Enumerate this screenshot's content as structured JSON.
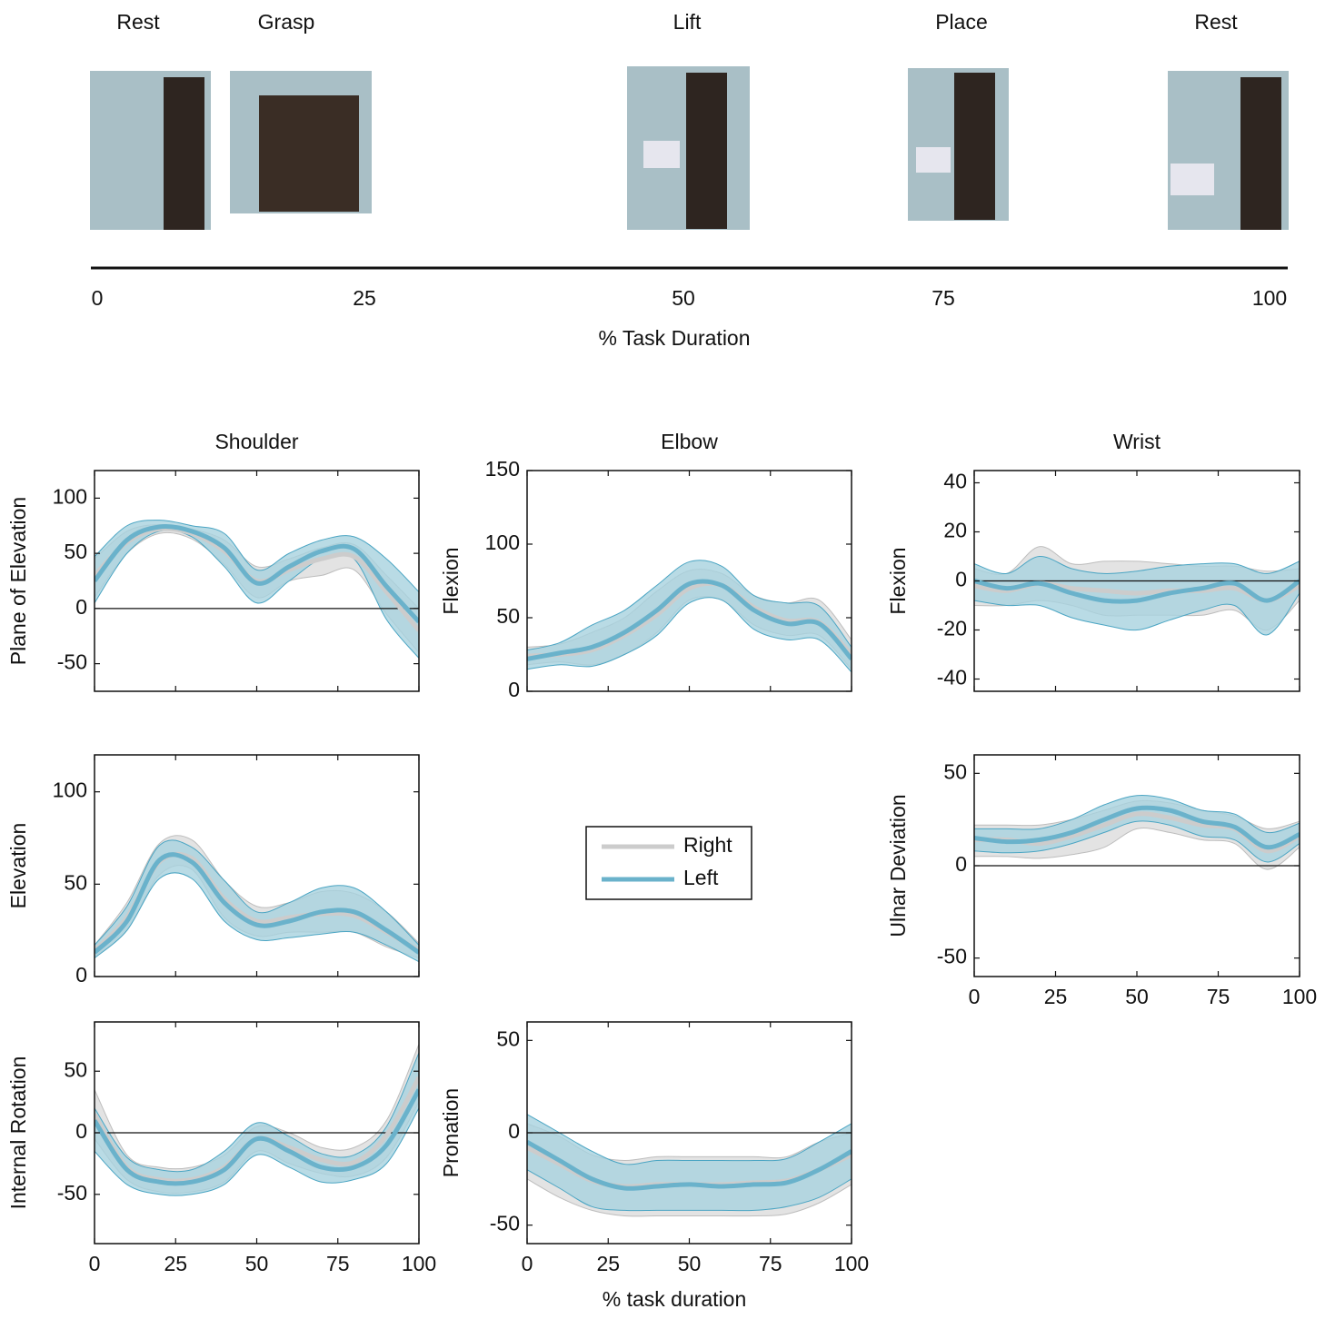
{
  "timeline": {
    "phases": [
      "Rest",
      "Grasp",
      "Lift",
      "Place",
      "Rest"
    ],
    "ticks": [
      0,
      25,
      50,
      75,
      100
    ],
    "xlabel": "% Task Duration"
  },
  "xlabel": "% task duration",
  "chart_data": [
    {
      "type": "line",
      "title": "Shoulder",
      "ylabel": "Plane of Elevation",
      "x": [
        0,
        10,
        20,
        30,
        40,
        50,
        60,
        70,
        80,
        90,
        100
      ],
      "xlim": [
        0,
        100
      ],
      "xticks": [
        0,
        25,
        50,
        75,
        100
      ],
      "show_xtick_labels": false,
      "ylim": [
        -75,
        125
      ],
      "yticks": [
        -50,
        0,
        50,
        100
      ],
      "zero_line": true,
      "series": [
        {
          "name": "Right",
          "color": "#cccccc",
          "band_color": "#e3e3e3",
          "values": [
            30,
            60,
            72,
            68,
            52,
            25,
            35,
            45,
            47,
            15,
            -20
          ],
          "lower": [
            10,
            50,
            68,
            63,
            40,
            10,
            25,
            30,
            35,
            -5,
            -40
          ],
          "upper": [
            45,
            70,
            76,
            72,
            62,
            38,
            45,
            55,
            58,
            30,
            0
          ]
        },
        {
          "name": "Left",
          "color": "#6ab2cb",
          "band_color": "#a8d2df",
          "values": [
            25,
            62,
            74,
            70,
            55,
            23,
            38,
            52,
            54,
            20,
            -12
          ],
          "lower": [
            5,
            50,
            70,
            65,
            38,
            5,
            25,
            45,
            45,
            -10,
            -45
          ],
          "upper": [
            47,
            75,
            80,
            75,
            68,
            35,
            50,
            62,
            65,
            45,
            15
          ]
        }
      ]
    },
    {
      "type": "line",
      "title": "Elbow",
      "ylabel": "Flexion",
      "x": [
        0,
        10,
        20,
        30,
        40,
        50,
        60,
        70,
        80,
        90,
        100
      ],
      "xlim": [
        0,
        100
      ],
      "xticks": [
        0,
        25,
        50,
        75,
        100
      ],
      "show_xtick_labels": false,
      "ylim": [
        0,
        150
      ],
      "yticks": [
        0,
        50,
        100,
        150
      ],
      "zero_line": false,
      "series": [
        {
          "name": "Right",
          "color": "#cccccc",
          "band_color": "#e3e3e3",
          "values": [
            24,
            25,
            28,
            38,
            52,
            70,
            72,
            57,
            48,
            47,
            25
          ],
          "lower": [
            18,
            20,
            18,
            25,
            40,
            62,
            62,
            45,
            38,
            38,
            15
          ],
          "upper": [
            30,
            32,
            40,
            50,
            68,
            82,
            80,
            65,
            60,
            62,
            35
          ]
        },
        {
          "name": "Left",
          "color": "#6ab2cb",
          "band_color": "#a8d2df",
          "values": [
            22,
            26,
            30,
            40,
            55,
            73,
            72,
            55,
            46,
            46,
            22
          ],
          "lower": [
            15,
            18,
            17,
            25,
            38,
            60,
            62,
            42,
            35,
            35,
            13
          ],
          "upper": [
            28,
            33,
            45,
            55,
            72,
            88,
            85,
            65,
            60,
            58,
            30
          ]
        }
      ]
    },
    {
      "type": "line",
      "title": "Wrist",
      "ylabel": "Flexion",
      "x": [
        0,
        10,
        20,
        30,
        40,
        50,
        60,
        70,
        80,
        90,
        100
      ],
      "xlim": [
        0,
        100
      ],
      "xticks": [
        0,
        25,
        50,
        75,
        100
      ],
      "show_xtick_labels": false,
      "ylim": [
        -45,
        45
      ],
      "yticks": [
        -40,
        -20,
        0,
        20,
        40
      ],
      "zero_line": true,
      "series": [
        {
          "name": "Right",
          "color": "#cccccc",
          "band_color": "#e3e3e3",
          "values": [
            -2,
            -4,
            -1,
            -3,
            -4,
            -5,
            -4,
            -4,
            -3,
            -8,
            -2
          ],
          "lower": [
            -10,
            -10,
            -8,
            -10,
            -14,
            -14,
            -14,
            -14,
            -12,
            -20,
            -8
          ],
          "upper": [
            5,
            3,
            14,
            7,
            8,
            8,
            7,
            6,
            6,
            4,
            5
          ]
        },
        {
          "name": "Left",
          "color": "#6ab2cb",
          "band_color": "#a8d2df",
          "values": [
            0,
            -3,
            -1,
            -5,
            -8,
            -8,
            -5,
            -3,
            -1,
            -8,
            0
          ],
          "lower": [
            -8,
            -10,
            -10,
            -15,
            -18,
            -20,
            -16,
            -12,
            -10,
            -22,
            -5
          ],
          "upper": [
            7,
            3,
            10,
            5,
            3,
            4,
            6,
            7,
            7,
            3,
            8
          ]
        }
      ]
    },
    {
      "type": "line",
      "ylabel": "Elevation",
      "x": [
        0,
        10,
        20,
        30,
        40,
        50,
        60,
        70,
        80,
        90,
        100
      ],
      "xlim": [
        0,
        100
      ],
      "xticks": [
        0,
        25,
        50,
        75,
        100
      ],
      "show_xtick_labels": false,
      "ylim": [
        0,
        120
      ],
      "yticks": [
        0,
        50,
        100
      ],
      "zero_line": false,
      "series": [
        {
          "name": "Right",
          "color": "#cccccc",
          "band_color": "#e3e3e3",
          "values": [
            14,
            32,
            62,
            64,
            42,
            30,
            32,
            34,
            33,
            24,
            14
          ],
          "lower": [
            11,
            25,
            55,
            58,
            32,
            22,
            24,
            24,
            24,
            16,
            10
          ],
          "upper": [
            17,
            40,
            72,
            74,
            52,
            38,
            40,
            46,
            45,
            35,
            18
          ]
        },
        {
          "name": "Left",
          "color": "#6ab2cb",
          "band_color": "#a8d2df",
          "values": [
            13,
            30,
            63,
            62,
            40,
            28,
            30,
            35,
            35,
            25,
            13
          ],
          "lower": [
            10,
            25,
            53,
            53,
            30,
            20,
            21,
            23,
            24,
            17,
            8
          ],
          "upper": [
            17,
            38,
            71,
            70,
            52,
            35,
            40,
            48,
            48,
            35,
            17
          ]
        }
      ]
    },
    {
      "type": "line",
      "ylabel": "Ulnar Deviation",
      "x": [
        0,
        10,
        20,
        30,
        40,
        50,
        60,
        70,
        80,
        90,
        100
      ],
      "xlim": [
        0,
        100
      ],
      "xticks": [
        0,
        25,
        50,
        75,
        100
      ],
      "show_xtick_labels": true,
      "ylim": [
        -60,
        60
      ],
      "yticks": [
        -50,
        0,
        50
      ],
      "zero_line": true,
      "series": [
        {
          "name": "Right",
          "color": "#cccccc",
          "band_color": "#e3e3e3",
          "values": [
            14,
            14,
            12,
            16,
            22,
            28,
            26,
            22,
            20,
            8,
            16
          ],
          "lower": [
            5,
            5,
            4,
            6,
            10,
            20,
            18,
            14,
            12,
            -2,
            10
          ],
          "upper": [
            22,
            22,
            22,
            25,
            30,
            35,
            34,
            30,
            27,
            20,
            24
          ]
        },
        {
          "name": "Left",
          "color": "#6ab2cb",
          "band_color": "#a8d2df",
          "values": [
            15,
            13,
            14,
            18,
            25,
            31,
            30,
            24,
            21,
            10,
            17
          ],
          "lower": [
            8,
            7,
            8,
            12,
            18,
            24,
            22,
            16,
            14,
            2,
            12
          ],
          "upper": [
            20,
            20,
            20,
            25,
            33,
            38,
            36,
            30,
            28,
            18,
            23
          ]
        }
      ]
    },
    {
      "type": "line",
      "ylabel": "Internal Rotation",
      "x": [
        0,
        10,
        20,
        30,
        40,
        50,
        60,
        70,
        80,
        90,
        100
      ],
      "xlim": [
        0,
        100
      ],
      "xticks": [
        0,
        25,
        50,
        75,
        100
      ],
      "show_xtick_labels": true,
      "ylim": [
        -90,
        90
      ],
      "yticks": [
        -50,
        0,
        50
      ],
      "zero_line": true,
      "series": [
        {
          "name": "Right",
          "color": "#cccccc",
          "band_color": "#e3e3e3",
          "values": [
            15,
            -28,
            -38,
            -38,
            -28,
            -5,
            -12,
            -22,
            -24,
            -2,
            45
          ],
          "lower": [
            -5,
            -38,
            -48,
            -48,
            -40,
            -15,
            -25,
            -33,
            -35,
            -20,
            25
          ],
          "upper": [
            35,
            -18,
            -28,
            -28,
            -18,
            5,
            0,
            -12,
            -12,
            10,
            72
          ]
        },
        {
          "name": "Left",
          "color": "#6ab2cb",
          "band_color": "#a8d2df",
          "values": [
            10,
            -30,
            -40,
            -40,
            -30,
            -5,
            -15,
            -28,
            -28,
            -10,
            35
          ],
          "lower": [
            -15,
            -42,
            -50,
            -50,
            -42,
            -18,
            -28,
            -40,
            -38,
            -25,
            20
          ],
          "upper": [
            20,
            -20,
            -30,
            -30,
            -15,
            8,
            -3,
            -17,
            -18,
            5,
            65
          ]
        }
      ]
    },
    {
      "type": "line",
      "ylabel": "Pronation",
      "x": [
        0,
        10,
        20,
        30,
        40,
        50,
        60,
        70,
        80,
        90,
        100
      ],
      "xlim": [
        0,
        100
      ],
      "xticks": [
        0,
        25,
        50,
        75,
        100
      ],
      "show_xtick_labels": true,
      "ylim": [
        -60,
        60
      ],
      "yticks": [
        -50,
        0,
        50
      ],
      "zero_line": true,
      "series": [
        {
          "name": "Right",
          "color": "#cccccc",
          "band_color": "#e3e3e3",
          "values": [
            -8,
            -17,
            -26,
            -29,
            -28,
            -28,
            -28,
            -27,
            -26,
            -20,
            -12
          ],
          "lower": [
            -25,
            -35,
            -42,
            -45,
            -45,
            -45,
            -45,
            -45,
            -44,
            -38,
            -28
          ],
          "upper": [
            5,
            -2,
            -12,
            -15,
            -13,
            -13,
            -13,
            -13,
            -13,
            -5,
            0
          ]
        },
        {
          "name": "Left",
          "color": "#6ab2cb",
          "band_color": "#a8d2df",
          "values": [
            -5,
            -15,
            -25,
            -30,
            -29,
            -28,
            -29,
            -28,
            -27,
            -20,
            -10
          ],
          "lower": [
            -20,
            -30,
            -40,
            -42,
            -42,
            -42,
            -42,
            -42,
            -40,
            -35,
            -25
          ],
          "upper": [
            10,
            0,
            -10,
            -17,
            -15,
            -15,
            -15,
            -15,
            -14,
            -5,
            5
          ]
        }
      ]
    }
  ]
}
